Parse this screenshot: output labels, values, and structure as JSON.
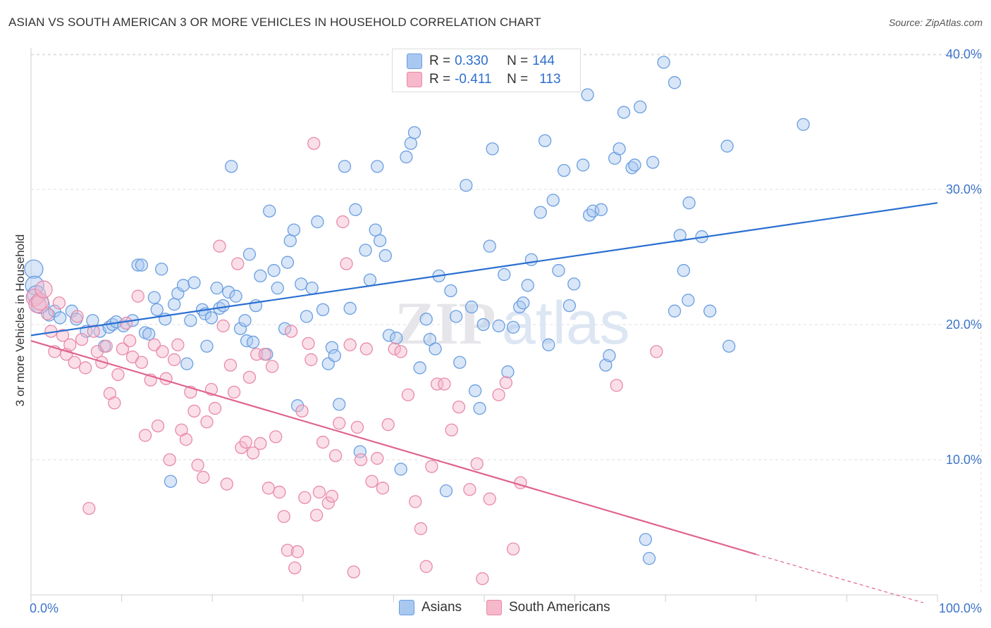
{
  "title": "ASIAN VS SOUTH AMERICAN 3 OR MORE VEHICLES IN HOUSEHOLD CORRELATION CHART",
  "source": "Source: ZipAtlas.com",
  "watermark": {
    "zip": "ZIP",
    "atlas": "atlas"
  },
  "legend": {
    "r_label": "R =",
    "n_label": "N =",
    "rows": [
      {
        "r": "0.330",
        "n": "144",
        "color": "#a9c8f0",
        "stroke": "#6a9ee0"
      },
      {
        "r": "-0.411",
        "n": "113",
        "color": "#f6b8cb",
        "stroke": "#e88aa8"
      }
    ]
  },
  "bottom_legend": [
    {
      "label": "Asians",
      "color": "#a9c8f0",
      "stroke": "#6a9ee0"
    },
    {
      "label": "South Americans",
      "color": "#f6b8cb",
      "stroke": "#e88aa8"
    }
  ],
  "chart_data": {
    "type": "scatter",
    "title": "ASIAN VS SOUTH AMERICAN 3 OR MORE VEHICLES IN HOUSEHOLD CORRELATION CHART",
    "xlabel": "",
    "ylabel": "3 or more Vehicles in Household",
    "xlim": [
      0,
      100
    ],
    "ylim": [
      0,
      40
    ],
    "x_tick_labels": [
      "0.0%",
      "100.0%"
    ],
    "y_tick_labels": [
      "10.0%",
      "20.0%",
      "30.0%",
      "40.0%"
    ],
    "y_ticks": [
      10,
      20,
      30,
      40
    ],
    "grid": true,
    "legend_position": "top-center",
    "series": [
      {
        "name": "Asians",
        "color": "#6a9ee0",
        "fill": "#a9c8f0",
        "trend": {
          "x": [
            0,
            100
          ],
          "y": [
            19.2,
            29.0
          ],
          "color": "#2a6fd1"
        },
        "points": [
          [
            0.3,
            24.1
          ],
          [
            0.4,
            22.9
          ],
          [
            0.6,
            22.2
          ],
          [
            1.0,
            21.5
          ],
          [
            2.0,
            20.7
          ],
          [
            2.6,
            21.0
          ],
          [
            3.2,
            20.5
          ],
          [
            4.5,
            21.0
          ],
          [
            5.0,
            20.4
          ],
          [
            6.1,
            19.5
          ],
          [
            6.8,
            20.3
          ],
          [
            7.6,
            19.5
          ],
          [
            8.1,
            18.4
          ],
          [
            8.6,
            19.8
          ],
          [
            9.0,
            20.0
          ],
          [
            9.4,
            20.2
          ],
          [
            10.2,
            19.9
          ],
          [
            11.2,
            20.3
          ],
          [
            11.8,
            24.4
          ],
          [
            12.2,
            24.4
          ],
          [
            12.6,
            19.4
          ],
          [
            13.0,
            19.3
          ],
          [
            13.6,
            22.0
          ],
          [
            13.9,
            21.1
          ],
          [
            14.4,
            24.1
          ],
          [
            14.8,
            20.4
          ],
          [
            15.4,
            8.4
          ],
          [
            15.8,
            21.5
          ],
          [
            16.2,
            22.3
          ],
          [
            16.8,
            22.9
          ],
          [
            17.2,
            17.1
          ],
          [
            17.6,
            20.3
          ],
          [
            18.0,
            23.1
          ],
          [
            18.9,
            21.1
          ],
          [
            19.2,
            20.8
          ],
          [
            19.4,
            18.4
          ],
          [
            19.9,
            20.5
          ],
          [
            20.5,
            22.7
          ],
          [
            20.8,
            21.2
          ],
          [
            21.2,
            21.4
          ],
          [
            21.8,
            22.4
          ],
          [
            22.1,
            31.7
          ],
          [
            22.6,
            22.1
          ],
          [
            23.1,
            19.7
          ],
          [
            23.6,
            20.3
          ],
          [
            23.8,
            18.8
          ],
          [
            24.1,
            25.2
          ],
          [
            24.5,
            18.7
          ],
          [
            24.8,
            21.4
          ],
          [
            25.3,
            23.6
          ],
          [
            26.0,
            17.8
          ],
          [
            26.3,
            28.4
          ],
          [
            26.8,
            24.0
          ],
          [
            27.2,
            22.7
          ],
          [
            28.0,
            19.7
          ],
          [
            28.3,
            24.6
          ],
          [
            28.6,
            26.2
          ],
          [
            29.0,
            27.0
          ],
          [
            29.4,
            14.0
          ],
          [
            29.8,
            23.0
          ],
          [
            30.4,
            20.6
          ],
          [
            31.0,
            22.7
          ],
          [
            31.6,
            27.6
          ],
          [
            32.2,
            21.1
          ],
          [
            32.8,
            17.1
          ],
          [
            33.2,
            18.3
          ],
          [
            33.5,
            17.7
          ],
          [
            34.0,
            14.1
          ],
          [
            34.6,
            31.7
          ],
          [
            35.2,
            21.2
          ],
          [
            35.8,
            28.5
          ],
          [
            36.3,
            10.6
          ],
          [
            36.9,
            25.5
          ],
          [
            37.4,
            23.3
          ],
          [
            38.0,
            27.0
          ],
          [
            38.5,
            26.2
          ],
          [
            39.1,
            25.1
          ],
          [
            39.5,
            19.2
          ],
          [
            40.3,
            19.0
          ],
          [
            40.8,
            9.3
          ],
          [
            41.4,
            32.4
          ],
          [
            41.9,
            33.4
          ],
          [
            42.3,
            34.2
          ],
          [
            42.9,
            16.8
          ],
          [
            43.6,
            20.4
          ],
          [
            44.0,
            18.9
          ],
          [
            44.6,
            18.2
          ],
          [
            45.0,
            23.6
          ],
          [
            45.8,
            7.7
          ],
          [
            46.3,
            22.5
          ],
          [
            46.9,
            20.6
          ],
          [
            47.3,
            17.2
          ],
          [
            48.0,
            30.3
          ],
          [
            48.6,
            21.3
          ],
          [
            49.0,
            15.1
          ],
          [
            49.5,
            13.8
          ],
          [
            49.9,
            20.0
          ],
          [
            50.6,
            25.8
          ],
          [
            50.9,
            33.0
          ],
          [
            51.6,
            19.9
          ],
          [
            52.2,
            23.7
          ],
          [
            52.6,
            16.5
          ],
          [
            53.2,
            19.8
          ],
          [
            53.9,
            21.3
          ],
          [
            54.3,
            21.6
          ],
          [
            54.8,
            22.9
          ],
          [
            55.2,
            24.8
          ],
          [
            56.2,
            28.3
          ],
          [
            56.7,
            33.6
          ],
          [
            57.1,
            18.5
          ],
          [
            57.6,
            29.2
          ],
          [
            58.2,
            24.0
          ],
          [
            58.8,
            31.4
          ],
          [
            59.4,
            21.4
          ],
          [
            59.9,
            23.0
          ],
          [
            60.9,
            31.8
          ],
          [
            61.4,
            37.0
          ],
          [
            61.6,
            28.1
          ],
          [
            62.0,
            28.4
          ],
          [
            62.9,
            28.5
          ],
          [
            63.4,
            17.0
          ],
          [
            63.8,
            17.7
          ],
          [
            64.4,
            32.3
          ],
          [
            64.9,
            33.0
          ],
          [
            65.4,
            35.7
          ],
          [
            66.3,
            31.6
          ],
          [
            66.6,
            31.8
          ],
          [
            67.2,
            36.1
          ],
          [
            67.8,
            4.1
          ],
          [
            68.2,
            2.7
          ],
          [
            68.6,
            32.0
          ],
          [
            69.8,
            39.4
          ],
          [
            71.0,
            37.9
          ],
          [
            71.6,
            26.6
          ],
          [
            72.0,
            24.0
          ],
          [
            72.6,
            29.0
          ],
          [
            74.9,
            21.0
          ],
          [
            74.0,
            26.5
          ],
          [
            76.8,
            33.2
          ],
          [
            77.0,
            18.4
          ],
          [
            85.2,
            34.8
          ],
          [
            71.0,
            21.0
          ],
          [
            72.5,
            21.8
          ],
          [
            38.2,
            31.7
          ]
        ]
      },
      {
        "name": "South Americans",
        "color": "#e88aa8",
        "fill": "#f6b8cb",
        "trend": {
          "x": [
            0,
            80
          ],
          "y": [
            18.8,
            3.0
          ],
          "color": "#e0648e",
          "dashed_to": [
            100,
            -1.0
          ]
        },
        "points": [
          [
            0.4,
            22.0
          ],
          [
            0.7,
            21.5
          ],
          [
            1.0,
            21.7
          ],
          [
            1.4,
            22.6
          ],
          [
            1.8,
            20.8
          ],
          [
            2.2,
            19.5
          ],
          [
            2.6,
            18.0
          ],
          [
            3.1,
            21.6
          ],
          [
            3.5,
            19.2
          ],
          [
            3.9,
            17.8
          ],
          [
            4.3,
            18.5
          ],
          [
            4.8,
            17.2
          ],
          [
            5.1,
            20.6
          ],
          [
            5.6,
            18.9
          ],
          [
            6.0,
            16.8
          ],
          [
            6.4,
            6.4
          ],
          [
            6.9,
            19.5
          ],
          [
            7.3,
            18.0
          ],
          [
            7.8,
            17.2
          ],
          [
            8.3,
            18.4
          ],
          [
            8.7,
            14.9
          ],
          [
            9.2,
            14.2
          ],
          [
            9.6,
            16.3
          ],
          [
            10.1,
            18.2
          ],
          [
            10.5,
            20.1
          ],
          [
            10.9,
            18.8
          ],
          [
            11.2,
            17.6
          ],
          [
            11.8,
            22.1
          ],
          [
            12.2,
            17.2
          ],
          [
            12.6,
            11.8
          ],
          [
            13.2,
            15.9
          ],
          [
            13.6,
            18.5
          ],
          [
            14.0,
            12.5
          ],
          [
            14.5,
            18.0
          ],
          [
            14.9,
            16.0
          ],
          [
            15.3,
            10.0
          ],
          [
            15.8,
            17.4
          ],
          [
            16.2,
            18.5
          ],
          [
            16.6,
            12.2
          ],
          [
            17.1,
            11.5
          ],
          [
            17.6,
            15.0
          ],
          [
            18.0,
            13.6
          ],
          [
            18.4,
            9.6
          ],
          [
            19.0,
            8.7
          ],
          [
            19.4,
            12.8
          ],
          [
            19.9,
            15.2
          ],
          [
            20.3,
            13.8
          ],
          [
            20.8,
            25.8
          ],
          [
            21.2,
            19.9
          ],
          [
            21.6,
            8.2
          ],
          [
            22.0,
            17.0
          ],
          [
            22.4,
            15.0
          ],
          [
            22.8,
            24.5
          ],
          [
            23.2,
            10.9
          ],
          [
            23.7,
            11.3
          ],
          [
            24.1,
            16.1
          ],
          [
            24.5,
            10.5
          ],
          [
            24.9,
            17.8
          ],
          [
            25.3,
            11.2
          ],
          [
            25.8,
            17.8
          ],
          [
            26.2,
            7.9
          ],
          [
            26.6,
            16.9
          ],
          [
            27.0,
            11.7
          ],
          [
            27.4,
            7.6
          ],
          [
            27.9,
            5.8
          ],
          [
            28.3,
            3.3
          ],
          [
            28.7,
            19.5
          ],
          [
            29.1,
            2.0
          ],
          [
            29.4,
            3.2
          ],
          [
            29.9,
            13.6
          ],
          [
            30.2,
            7.2
          ],
          [
            30.6,
            18.6
          ],
          [
            30.9,
            17.4
          ],
          [
            31.2,
            33.4
          ],
          [
            31.5,
            5.9
          ],
          [
            31.8,
            7.6
          ],
          [
            32.2,
            11.3
          ],
          [
            32.8,
            6.8
          ],
          [
            33.2,
            7.3
          ],
          [
            33.6,
            10.3
          ],
          [
            34.0,
            12.7
          ],
          [
            34.4,
            27.6
          ],
          [
            34.8,
            24.5
          ],
          [
            35.2,
            18.5
          ],
          [
            35.6,
            1.7
          ],
          [
            36.0,
            12.4
          ],
          [
            36.4,
            10.0
          ],
          [
            37.0,
            18.2
          ],
          [
            37.6,
            8.4
          ],
          [
            38.2,
            10.1
          ],
          [
            38.8,
            7.9
          ],
          [
            39.4,
            12.6
          ],
          [
            40.1,
            18.2
          ],
          [
            40.8,
            18.0
          ],
          [
            41.6,
            14.8
          ],
          [
            42.4,
            6.9
          ],
          [
            43.0,
            4.9
          ],
          [
            43.6,
            2.1
          ],
          [
            44.2,
            9.5
          ],
          [
            44.8,
            15.6
          ],
          [
            45.6,
            15.6
          ],
          [
            46.4,
            12.2
          ],
          [
            47.2,
            13.9
          ],
          [
            48.4,
            7.8
          ],
          [
            49.2,
            9.7
          ],
          [
            49.8,
            1.2
          ],
          [
            50.6,
            7.1
          ],
          [
            51.6,
            14.8
          ],
          [
            52.4,
            15.7
          ],
          [
            53.2,
            3.4
          ],
          [
            54.0,
            8.3
          ],
          [
            64.6,
            15.5
          ],
          [
            69.0,
            18.0
          ]
        ]
      }
    ]
  }
}
